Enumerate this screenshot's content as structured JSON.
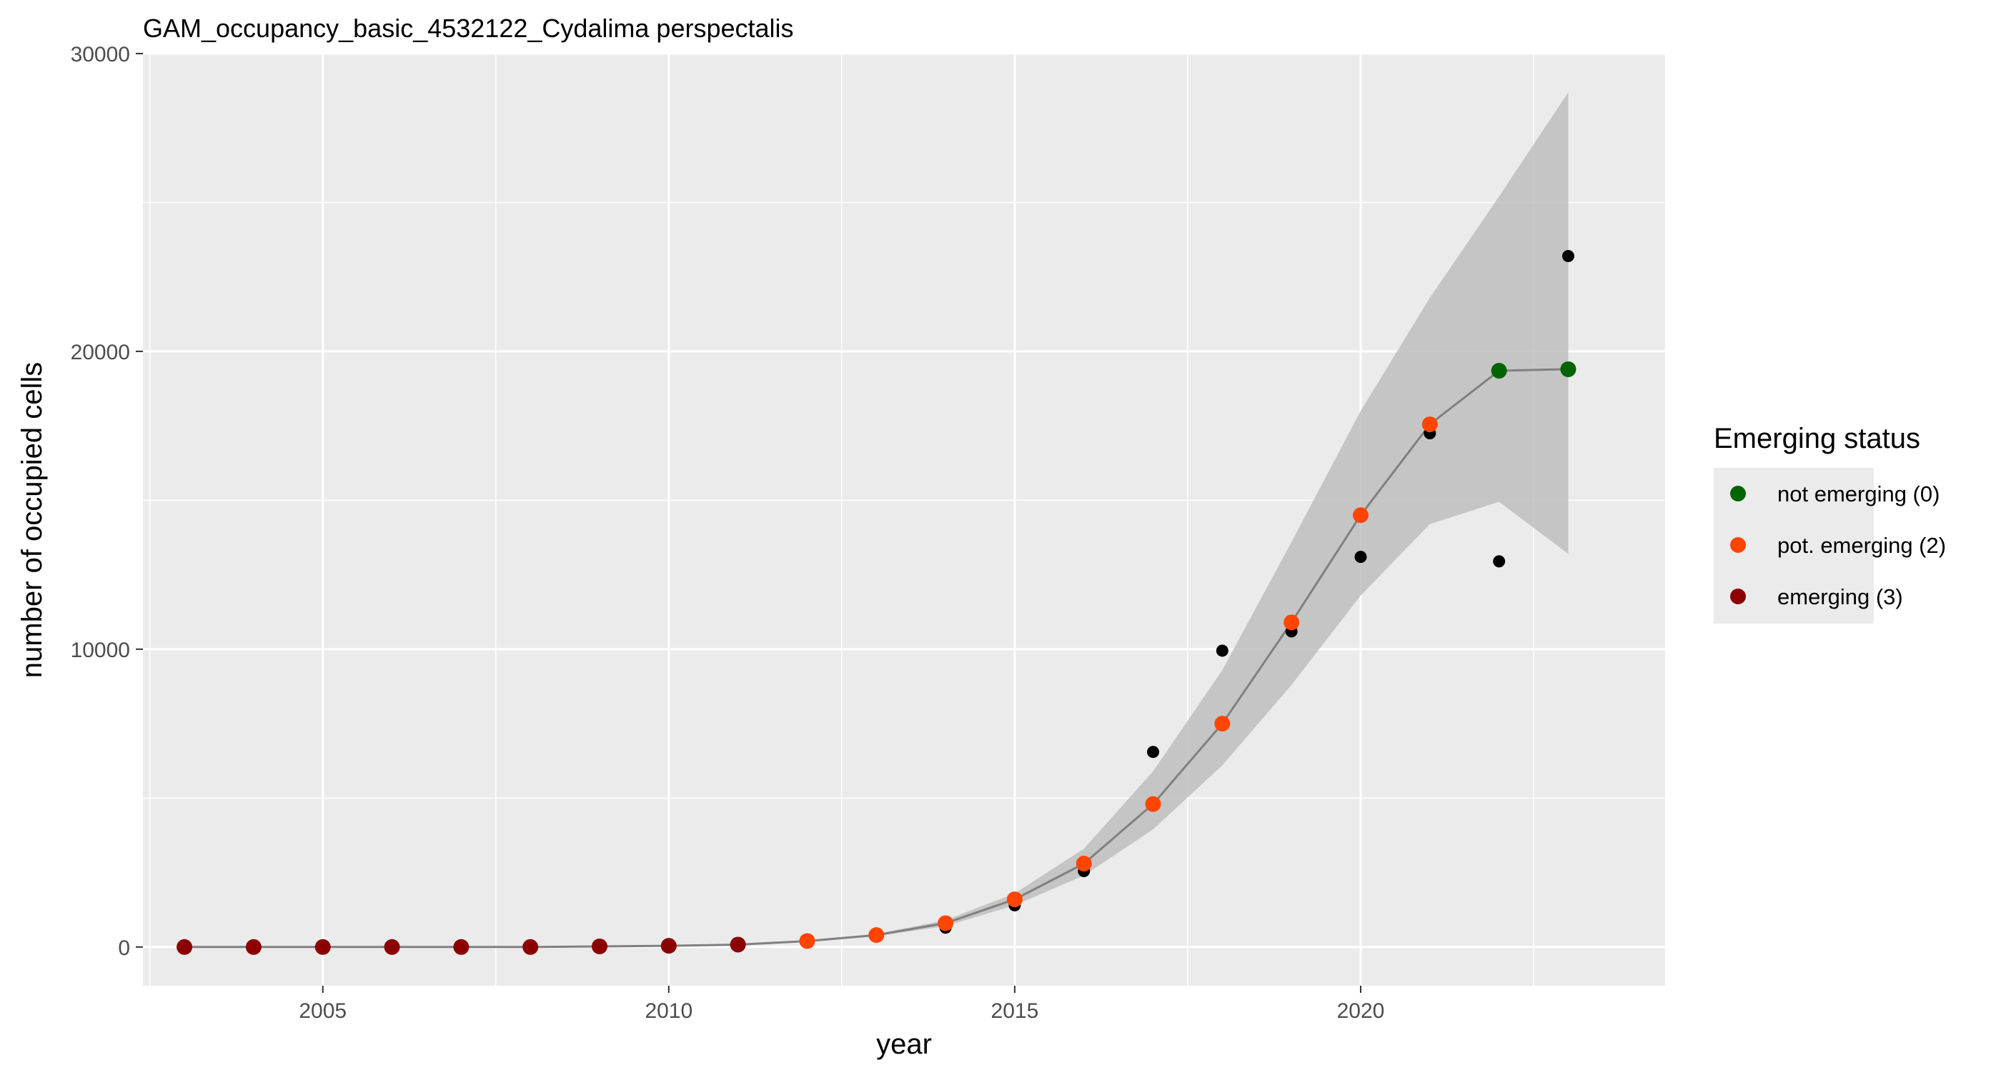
{
  "chart_data": {
    "type": "line",
    "title": "GAM_occupancy_basic_4532122_Cydalima perspectalis",
    "xlabel": "year",
    "ylabel": "number of occupied cells",
    "xlim": [
      2002.4,
      2024.4
    ],
    "ylim": [
      -1300,
      30000
    ],
    "x_ticks": [
      2005,
      2010,
      2015,
      2020
    ],
    "y_ticks": [
      0,
      10000,
      20000,
      30000
    ],
    "x_tick_labels": [
      "2005",
      "2010",
      "2015",
      "2020"
    ],
    "y_tick_labels": [
      "0",
      "10000",
      "20000",
      "30000"
    ],
    "grid": true,
    "legend": {
      "title": "Emerging status",
      "position": "right",
      "entries": [
        {
          "label": "not emerging (0)",
          "color": "#006400"
        },
        {
          "label": "pot. emerging (2)",
          "color": "#FF4500"
        },
        {
          "label": "emerging (3)",
          "color": "#8B0000"
        }
      ]
    },
    "colors": {
      "panel_background": "#EBEBEB",
      "grid_major": "#FFFFFF",
      "fit_line": "#808080",
      "ribbon": "#BEBEBE",
      "observed": "#000000",
      "status_0": "#006400",
      "status_2": "#FF4500",
      "status_3": "#8B0000"
    },
    "series": [
      {
        "kind": "observed",
        "x": [
          2003,
          2004,
          2005,
          2006,
          2007,
          2008,
          2009,
          2010,
          2011,
          2012,
          2013,
          2014,
          2015,
          2016,
          2017,
          2018,
          2019,
          2020,
          2021,
          2022,
          2023
        ],
        "y": [
          0,
          0,
          0,
          0,
          0,
          0,
          20,
          40,
          100,
          200,
          400,
          650,
          1400,
          2550,
          6550,
          9950,
          10600,
          13100,
          17250,
          12950,
          23200
        ]
      },
      {
        "kind": "fitted",
        "x": [
          2003,
          2004,
          2005,
          2006,
          2007,
          2008,
          2009,
          2010,
          2011,
          2012,
          2013,
          2014,
          2015,
          2016,
          2017,
          2018,
          2019,
          2020,
          2021,
          2022,
          2023
        ],
        "y": [
          0,
          0,
          0,
          0,
          0,
          0,
          20,
          40,
          80,
          200,
          400,
          800,
          1600,
          2800,
          4800,
          7500,
          10900,
          14500,
          17550,
          19350,
          19400
        ],
        "lower": [
          0,
          0,
          0,
          0,
          0,
          0,
          20,
          40,
          75,
          180,
          360,
          700,
          1400,
          2400,
          3950,
          6100,
          8800,
          11800,
          14200,
          14950,
          13200
        ],
        "upper": [
          0,
          0,
          0,
          0,
          0,
          0,
          20,
          40,
          85,
          220,
          440,
          900,
          1800,
          3300,
          5900,
          9300,
          13600,
          18000,
          21800,
          25200,
          28700
        ],
        "status": [
          3,
          3,
          3,
          3,
          3,
          3,
          3,
          3,
          3,
          2,
          2,
          2,
          2,
          2,
          2,
          2,
          2,
          2,
          2,
          0,
          0
        ]
      }
    ]
  }
}
